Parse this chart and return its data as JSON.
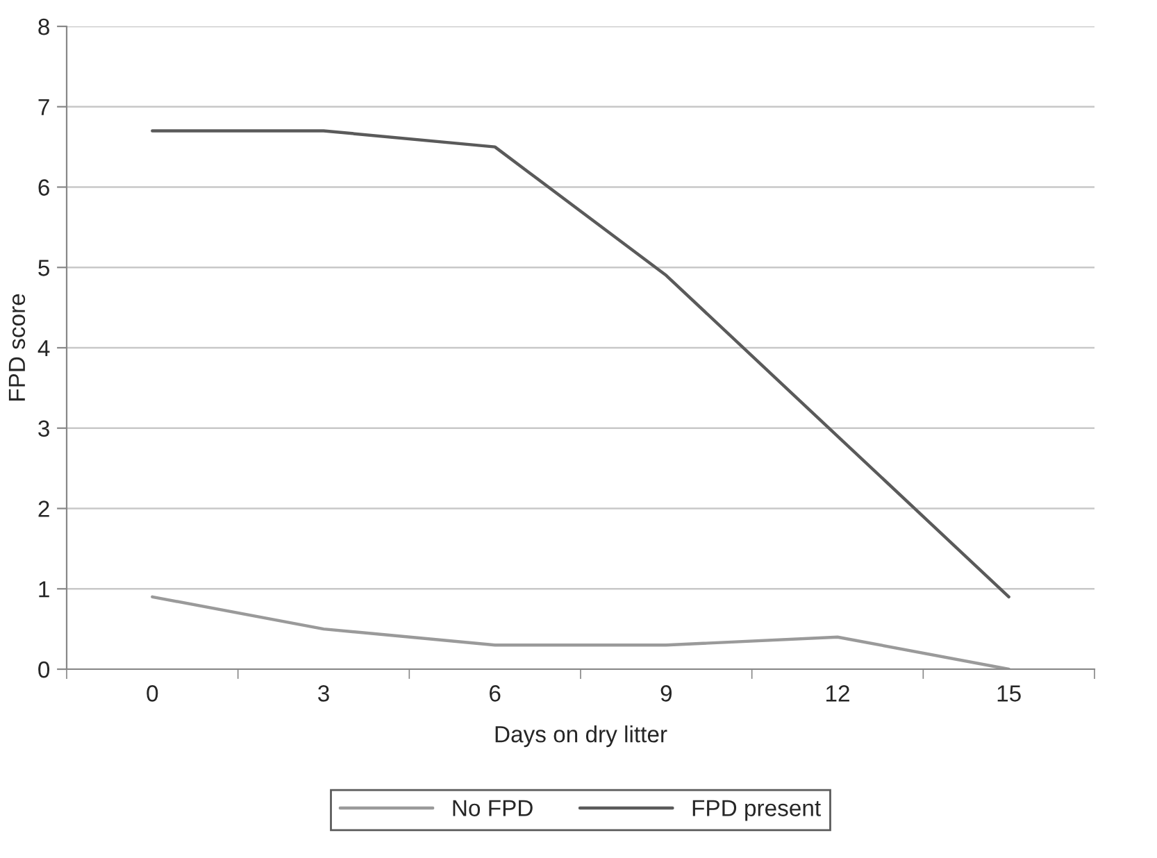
{
  "chart_data": {
    "type": "line",
    "xlabel": "Days on dry litter",
    "ylabel": "FPD score",
    "categories": [
      "0",
      "3",
      "6",
      "9",
      "12",
      "15"
    ],
    "series": [
      {
        "name": "No FPD",
        "color": "#9a9a9a",
        "values": [
          0.9,
          0.5,
          0.3,
          0.3,
          0.4,
          0.0
        ]
      },
      {
        "name": "FPD present",
        "color": "#5a5a5a",
        "values": [
          6.7,
          6.7,
          6.5,
          4.9,
          2.9,
          0.9
        ]
      }
    ],
    "ylim": [
      0,
      8
    ],
    "yticks": [
      0,
      1,
      2,
      3,
      4,
      5,
      6,
      7,
      8
    ],
    "grid": "y",
    "legend": "bottom",
    "marker": "none",
    "line_style": "solid"
  }
}
